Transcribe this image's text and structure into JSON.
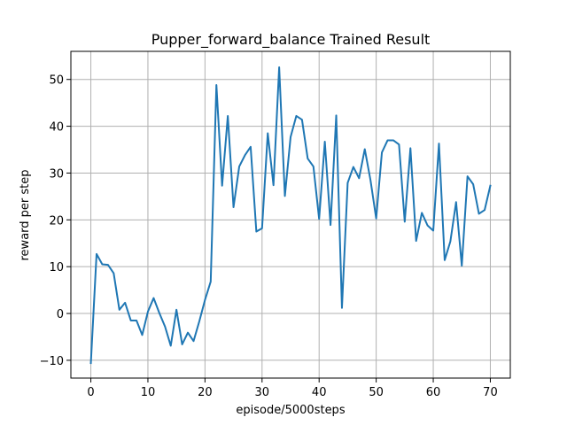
{
  "chart_data": {
    "type": "line",
    "title": "Pupper_forward_balance Trained Result",
    "xlabel": "episode/5000steps",
    "ylabel": "reward per step",
    "xlim": [
      -3.5,
      73.5
    ],
    "ylim": [
      -13.8,
      56.0
    ],
    "xticks": [
      0,
      10,
      20,
      30,
      40,
      50,
      60,
      70
    ],
    "xtick_labels": [
      "0",
      "10",
      "20",
      "30",
      "40",
      "50",
      "60",
      "70"
    ],
    "yticks": [
      -10,
      0,
      10,
      20,
      30,
      40,
      50
    ],
    "ytick_labels": [
      "−10",
      "0",
      "10",
      "20",
      "30",
      "40",
      "50"
    ],
    "grid": true,
    "line_color": "#1f77b4",
    "grid_color": "#b0b0b0",
    "series": [
      {
        "x": [
          0,
          1,
          2,
          3,
          4,
          5,
          6,
          7,
          8,
          9,
          10,
          11,
          12,
          13,
          14,
          15,
          16,
          17,
          18,
          19,
          20,
          21,
          22,
          23,
          24,
          25,
          26,
          27,
          28,
          29,
          30,
          31,
          32,
          33,
          34,
          35,
          36,
          37,
          38,
          39,
          40,
          41,
          42,
          43,
          44,
          45,
          46,
          47,
          48,
          49,
          50,
          51,
          52,
          53,
          54,
          55,
          56,
          57,
          58,
          59,
          60,
          61,
          62,
          63,
          64,
          65,
          66,
          67,
          68,
          69,
          70
        ],
        "values": [
          -10.6,
          12.7,
          10.5,
          10.4,
          8.6,
          0.8,
          2.3,
          -1.5,
          -1.5,
          -4.6,
          0.4,
          3.3,
          0.1,
          -2.8,
          -6.9,
          0.8,
          -6.6,
          -4.1,
          -5.9,
          -1.7,
          2.9,
          6.8,
          48.8,
          27.3,
          42.2,
          22.7,
          31.4,
          33.8,
          35.6,
          17.5,
          18.2,
          38.5,
          27.4,
          52.6,
          25.1,
          37.7,
          42.2,
          41.4,
          33.1,
          31.4,
          20.2,
          36.7,
          18.9,
          42.3,
          1.2,
          27.9,
          31.3,
          28.9,
          35.1,
          28.5,
          20.3,
          34.4,
          37.0,
          37.0,
          36.1,
          19.6,
          35.3,
          15.5,
          21.5,
          18.8,
          17.7,
          36.3,
          11.4,
          15.4,
          23.8,
          10.2,
          29.3,
          27.6,
          21.3,
          22.1,
          27.3
        ]
      }
    ]
  }
}
